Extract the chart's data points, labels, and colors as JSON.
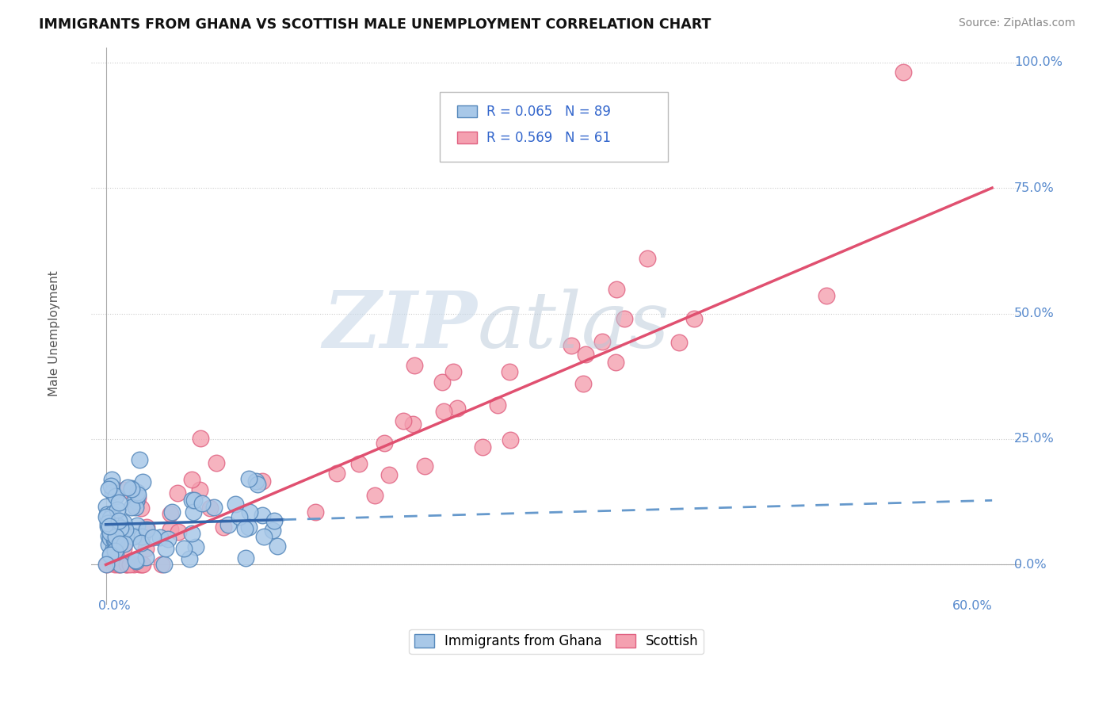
{
  "title": "IMMIGRANTS FROM GHANA VS SCOTTISH MALE UNEMPLOYMENT CORRELATION CHART",
  "source": "Source: ZipAtlas.com",
  "ylabel": "Male Unemployment",
  "ytick_labels": [
    "0.0%",
    "25.0%",
    "50.0%",
    "75.0%",
    "100.0%"
  ],
  "ytick_values": [
    0,
    25,
    50,
    75,
    100
  ],
  "xlim": [
    0,
    60
  ],
  "ylim": [
    0,
    100
  ],
  "legend_labels": [
    "Immigrants from Ghana",
    "Scottish"
  ],
  "ghana_R": 0.065,
  "ghana_N": 89,
  "scottish_R": 0.569,
  "scottish_N": 61,
  "ghana_color": "#A8C8E8",
  "scottish_color": "#F4A0B0",
  "ghana_edge_color": "#5588BB",
  "scottish_edge_color": "#E06080",
  "trend_blue_solid_color": "#3366AA",
  "trend_blue_dash_color": "#6699CC",
  "trend_pink_color": "#E05070",
  "watermark_zip_color": "#C8D8E8",
  "watermark_atlas_color": "#B8C8D8",
  "background_color": "#FFFFFF",
  "grid_color": "#CCCCCC",
  "right_label_color": "#5588CC",
  "title_color": "#111111",
  "source_color": "#888888",
  "ylabel_color": "#555555",
  "bottom_label_color": "#5588CC"
}
